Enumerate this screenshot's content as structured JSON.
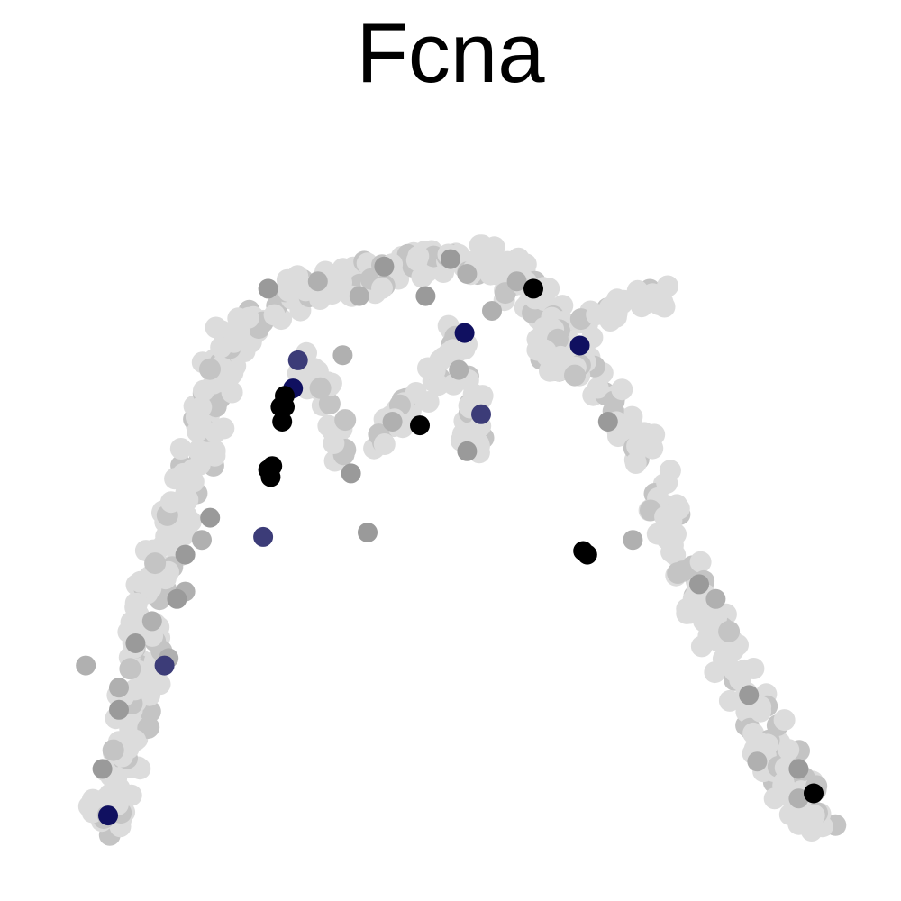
{
  "chart_data": {
    "type": "scatter",
    "title": "Fcna",
    "xlabel": "",
    "ylabel": "",
    "axes_visible": false,
    "grid": false,
    "legend": "none",
    "color_scale": {
      "low": "#dcdcdc",
      "mid": "#8c8c8c",
      "high_blue": "#101060",
      "high": "#000000"
    },
    "background_path": [
      [
        0.07,
        0.05
      ],
      [
        0.09,
        0.08
      ],
      [
        0.1,
        0.12
      ],
      [
        0.11,
        0.17
      ],
      [
        0.12,
        0.22
      ],
      [
        0.13,
        0.27
      ],
      [
        0.135,
        0.32
      ],
      [
        0.14,
        0.37
      ],
      [
        0.155,
        0.42
      ],
      [
        0.17,
        0.47
      ],
      [
        0.185,
        0.52
      ],
      [
        0.2,
        0.57
      ],
      [
        0.21,
        0.62
      ],
      [
        0.225,
        0.67
      ],
      [
        0.24,
        0.71
      ],
      [
        0.26,
        0.74
      ],
      [
        0.3,
        0.765
      ],
      [
        0.34,
        0.78
      ],
      [
        0.38,
        0.79
      ],
      [
        0.42,
        0.8
      ],
      [
        0.46,
        0.81
      ],
      [
        0.5,
        0.83
      ],
      [
        0.53,
        0.82
      ],
      [
        0.57,
        0.8
      ],
      [
        0.6,
        0.77
      ],
      [
        0.62,
        0.74
      ],
      [
        0.65,
        0.7
      ],
      [
        0.68,
        0.65
      ],
      [
        0.71,
        0.6
      ],
      [
        0.74,
        0.53
      ],
      [
        0.76,
        0.47
      ],
      [
        0.78,
        0.41
      ],
      [
        0.8,
        0.36
      ],
      [
        0.82,
        0.31
      ],
      [
        0.845,
        0.26
      ],
      [
        0.87,
        0.21
      ],
      [
        0.89,
        0.16
      ],
      [
        0.91,
        0.11
      ],
      [
        0.93,
        0.08
      ],
      [
        0.95,
        0.06
      ]
    ],
    "branches": [
      [
        [
          0.32,
          0.7
        ],
        [
          0.34,
          0.65
        ],
        [
          0.36,
          0.6
        ],
        [
          0.37,
          0.55
        ]
      ],
      [
        [
          0.5,
          0.72
        ],
        [
          0.47,
          0.65
        ],
        [
          0.43,
          0.6
        ],
        [
          0.41,
          0.57
        ]
      ],
      [
        [
          0.5,
          0.72
        ],
        [
          0.52,
          0.66
        ],
        [
          0.53,
          0.6
        ],
        [
          0.52,
          0.56
        ]
      ],
      [
        [
          0.62,
          0.72
        ],
        [
          0.67,
          0.74
        ],
        [
          0.72,
          0.76
        ],
        [
          0.75,
          0.77
        ]
      ],
      [
        [
          0.6,
          0.7
        ],
        [
          0.63,
          0.68
        ],
        [
          0.66,
          0.66
        ]
      ]
    ],
    "mid_points": [
      [
        0.06,
        0.27
      ],
      [
        0.1,
        0.21
      ],
      [
        0.1,
        0.24
      ],
      [
        0.08,
        0.13
      ],
      [
        0.12,
        0.3
      ],
      [
        0.14,
        0.33
      ],
      [
        0.16,
        0.28
      ],
      [
        0.18,
        0.37
      ],
      [
        0.18,
        0.42
      ],
      [
        0.2,
        0.44
      ],
      [
        0.21,
        0.47
      ],
      [
        0.28,
        0.78
      ],
      [
        0.34,
        0.79
      ],
      [
        0.37,
        0.69
      ],
      [
        0.39,
        0.77
      ],
      [
        0.42,
        0.81
      ],
      [
        0.47,
        0.77
      ],
      [
        0.5,
        0.82
      ],
      [
        0.52,
        0.8
      ],
      [
        0.55,
        0.75
      ],
      [
        0.58,
        0.79
      ],
      [
        0.43,
        0.6
      ],
      [
        0.52,
        0.56
      ],
      [
        0.51,
        0.67
      ],
      [
        0.38,
        0.53
      ],
      [
        0.72,
        0.44
      ],
      [
        0.69,
        0.6
      ],
      [
        0.8,
        0.38
      ],
      [
        0.82,
        0.36
      ],
      [
        0.86,
        0.23
      ],
      [
        0.92,
        0.13
      ],
      [
        0.92,
        0.09
      ],
      [
        0.87,
        0.14
      ],
      [
        0.17,
        0.36
      ],
      [
        0.4,
        0.45
      ]
    ],
    "high_points": [
      {
        "x": 0.6,
        "y": 0.78,
        "value": "high"
      },
      {
        "x": 0.517,
        "y": 0.72,
        "value": "blue"
      },
      {
        "x": 0.656,
        "y": 0.703,
        "value": "blue"
      },
      {
        "x": 0.316,
        "y": 0.683,
        "value": "blue-mid"
      },
      {
        "x": 0.31,
        "y": 0.645,
        "value": "blue"
      },
      {
        "x": 0.3,
        "y": 0.62,
        "value": "high"
      },
      {
        "x": 0.297,
        "y": 0.6,
        "value": "high"
      },
      {
        "x": 0.295,
        "y": 0.62,
        "value": "high"
      },
      {
        "x": 0.3,
        "y": 0.635,
        "value": "high"
      },
      {
        "x": 0.285,
        "y": 0.54,
        "value": "high"
      },
      {
        "x": 0.283,
        "y": 0.525,
        "value": "high"
      },
      {
        "x": 0.28,
        "y": 0.535,
        "value": "high"
      },
      {
        "x": 0.463,
        "y": 0.595,
        "value": "high"
      },
      {
        "x": 0.537,
        "y": 0.61,
        "value": "blue-mid"
      },
      {
        "x": 0.274,
        "y": 0.444,
        "value": "blue-mid"
      },
      {
        "x": 0.66,
        "y": 0.425,
        "value": "high"
      },
      {
        "x": 0.665,
        "y": 0.42,
        "value": "high"
      },
      {
        "x": 0.155,
        "y": 0.27,
        "value": "blue-mid"
      },
      {
        "x": 0.087,
        "y": 0.067,
        "value": "blue"
      },
      {
        "x": 0.938,
        "y": 0.097,
        "value": "high"
      }
    ]
  }
}
